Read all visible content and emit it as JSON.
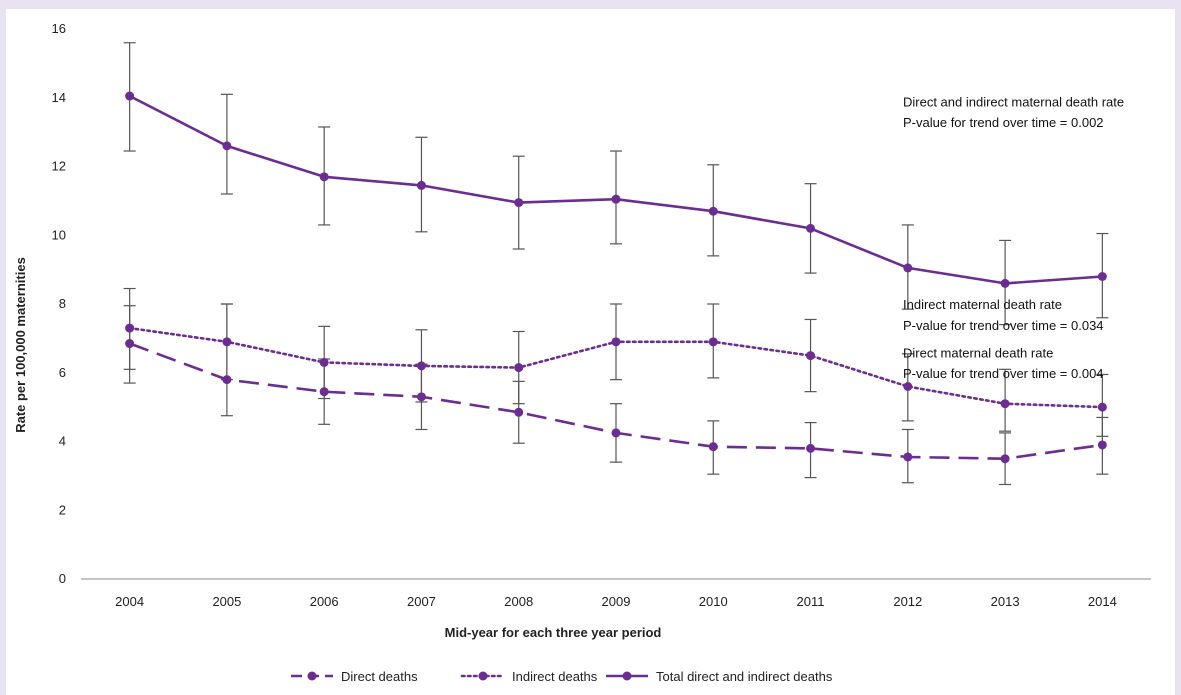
{
  "chart_data": {
    "type": "line",
    "title": "",
    "xlabel": "Mid-year for each three year period",
    "ylabel": "Rate per 100,000 maternities",
    "ylim": [
      0,
      16
    ],
    "yticks": [
      "0",
      "2",
      "4",
      "6",
      "8",
      "10",
      "12",
      "14",
      "16"
    ],
    "x": [
      "2004",
      "2005",
      "2006",
      "2007",
      "2008",
      "2009",
      "2010",
      "2011",
      "2012",
      "2013",
      "2014"
    ],
    "grid": false,
    "legend_position": "bottom",
    "series": [
      {
        "name": "Direct deaths",
        "style": "dashed",
        "color": "#6b2d91",
        "values": [
          6.85,
          5.8,
          5.45,
          5.3,
          4.85,
          4.25,
          3.85,
          3.8,
          3.55,
          3.5,
          3.9
        ],
        "err_low": [
          5.7,
          4.75,
          4.5,
          4.35,
          3.95,
          3.4,
          3.05,
          2.95,
          2.8,
          2.75,
          3.05
        ],
        "err_high": [
          7.95,
          8.0,
          6.4,
          6.25,
          5.75,
          5.1,
          4.6,
          4.55,
          4.35,
          4.25,
          4.7
        ]
      },
      {
        "name": "Indirect deaths",
        "style": "dotted",
        "color": "#6b2d91",
        "values": [
          7.3,
          6.9,
          6.3,
          6.2,
          6.15,
          6.9,
          6.9,
          6.5,
          5.6,
          5.1,
          5.0
        ],
        "err_low": [
          6.1,
          5.8,
          5.25,
          5.15,
          5.1,
          5.8,
          5.85,
          5.45,
          4.6,
          4.3,
          4.15
        ],
        "err_high": [
          8.45,
          8.0,
          7.35,
          7.25,
          7.2,
          8.0,
          8.0,
          7.55,
          6.55,
          6.1,
          5.95
        ]
      },
      {
        "name": "Total direct and indirect deaths",
        "style": "solid",
        "color": "#6b2d91",
        "values": [
          14.05,
          12.6,
          11.7,
          11.45,
          10.95,
          11.05,
          10.7,
          10.2,
          9.05,
          8.6,
          8.8
        ],
        "err_low": [
          12.45,
          11.2,
          10.3,
          10.1,
          9.6,
          9.75,
          9.4,
          8.9,
          7.85,
          7.4,
          7.6
        ],
        "err_high": [
          15.6,
          14.1,
          13.15,
          12.85,
          12.3,
          12.45,
          12.05,
          11.5,
          10.3,
          9.85,
          10.05
        ]
      }
    ],
    "annotations": [
      {
        "lines": [
          "Direct and indirect maternal death rate",
          "P-value for trend over time = 0.002"
        ]
      },
      {
        "lines": [
          "Indirect maternal death rate",
          "P-value for trend over time = 0.034"
        ]
      },
      {
        "lines": [
          "Direct maternal death rate",
          "P-value for trend over time = 0.004"
        ]
      }
    ],
    "colors": {
      "line": "#6b2d91",
      "errorbar": "#555555",
      "axis": "#888888",
      "background": "#e9e3f1"
    }
  }
}
